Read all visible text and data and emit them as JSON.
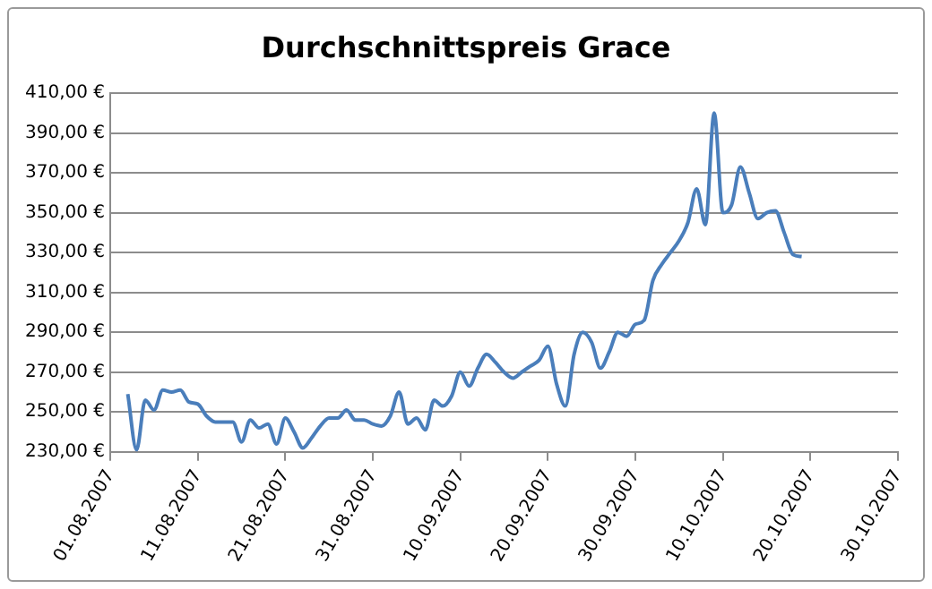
{
  "chart_data": {
    "type": "line",
    "title": "Durchschnittspreis Grace",
    "x": [
      "2007-08-03",
      "2007-08-04",
      "2007-08-05",
      "2007-08-06",
      "2007-08-07",
      "2007-08-08",
      "2007-08-09",
      "2007-08-10",
      "2007-08-11",
      "2007-08-12",
      "2007-08-13",
      "2007-08-14",
      "2007-08-15",
      "2007-08-16",
      "2007-08-17",
      "2007-08-18",
      "2007-08-19",
      "2007-08-20",
      "2007-08-21",
      "2007-08-22",
      "2007-08-23",
      "2007-08-24",
      "2007-08-25",
      "2007-08-26",
      "2007-08-27",
      "2007-08-28",
      "2007-08-29",
      "2007-08-30",
      "2007-08-31",
      "2007-09-01",
      "2007-09-02",
      "2007-09-03",
      "2007-09-04",
      "2007-09-05",
      "2007-09-06",
      "2007-09-07",
      "2007-09-08",
      "2007-09-09",
      "2007-09-10",
      "2007-09-11",
      "2007-09-12",
      "2007-09-13",
      "2007-09-14",
      "2007-09-15",
      "2007-09-16",
      "2007-09-17",
      "2007-09-18",
      "2007-09-19",
      "2007-09-20",
      "2007-09-21",
      "2007-09-22",
      "2007-09-23",
      "2007-09-24",
      "2007-09-25",
      "2007-09-26",
      "2007-09-27",
      "2007-09-28",
      "2007-09-29",
      "2007-09-30",
      "2007-10-01",
      "2007-10-02",
      "2007-10-03",
      "2007-10-04",
      "2007-10-05",
      "2007-10-06",
      "2007-10-07",
      "2007-10-08",
      "2007-10-09",
      "2007-10-10",
      "2007-10-11",
      "2007-10-12",
      "2007-10-13",
      "2007-10-14",
      "2007-10-15",
      "2007-10-16",
      "2007-10-17",
      "2007-10-18",
      "2007-10-19"
    ],
    "series": [
      {
        "color": "#4a7ebb",
        "values": [
          259,
          231,
          256,
          251,
          261,
          260,
          261,
          255,
          254,
          248,
          245,
          245,
          245,
          235,
          246,
          242,
          244,
          234,
          247,
          240,
          232,
          237,
          243,
          247,
          247,
          251,
          246,
          246,
          244,
          243,
          248,
          260,
          244,
          247,
          241,
          256,
          253,
          258,
          270,
          263,
          272,
          279,
          275,
          270,
          267,
          270,
          273,
          276,
          283,
          264,
          253,
          279,
          290,
          285,
          272,
          280,
          290,
          288,
          294,
          296,
          316,
          324,
          330,
          336,
          345,
          362,
          344,
          400,
          350,
          354,
          373,
          360,
          347,
          350,
          351,
          340,
          329,
          328
        ]
      }
    ],
    "xlim": [
      "2007-08-01",
      "2007-10-30"
    ],
    "xticks": [
      {
        "value": "2007-08-01",
        "label": "01.08.2007"
      },
      {
        "value": "2007-08-11",
        "label": "11.08.2007"
      },
      {
        "value": "2007-08-21",
        "label": "21.08.2007"
      },
      {
        "value": "2007-08-31",
        "label": "31.08.2007"
      },
      {
        "value": "2007-09-10",
        "label": "10.09.2007"
      },
      {
        "value": "2007-09-20",
        "label": "20.09.2007"
      },
      {
        "value": "2007-09-30",
        "label": "30.09.2007"
      },
      {
        "value": "2007-10-10",
        "label": "10.10.2007"
      },
      {
        "value": "2007-10-20",
        "label": "20.10.2007"
      },
      {
        "value": "2007-10-30",
        "label": "30.10.2007"
      }
    ],
    "ylim": [
      230,
      410
    ],
    "yticks": [
      {
        "value": 230,
        "label": "230,00 €"
      },
      {
        "value": 250,
        "label": "250,00 €"
      },
      {
        "value": 270,
        "label": "270,00 €"
      },
      {
        "value": 290,
        "label": "290,00 €"
      },
      {
        "value": 310,
        "label": "310,00 €"
      },
      {
        "value": 330,
        "label": "330,00 €"
      },
      {
        "value": 350,
        "label": "350,00 €"
      },
      {
        "value": 370,
        "label": "370,00 €"
      },
      {
        "value": 390,
        "label": "390,00 €"
      },
      {
        "value": 410,
        "label": "410,00 €"
      }
    ],
    "grid": "y",
    "marker": "none",
    "line_style": "solid"
  }
}
